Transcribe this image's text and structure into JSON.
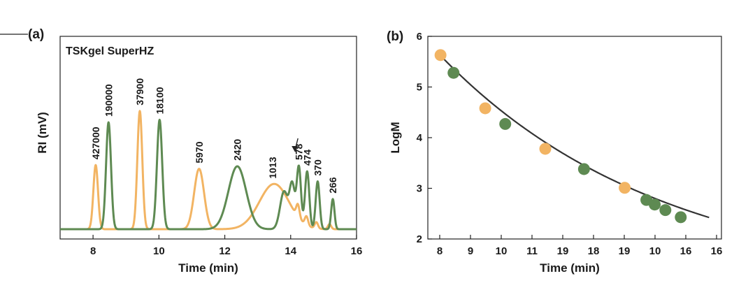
{
  "chart_data": [
    {
      "type": "line",
      "panel_label": "(a)",
      "title": "TSKgel SuperHZ",
      "xlabel": "Time (min)",
      "ylabel": "RI (mV)",
      "xlim": [
        7,
        16
      ],
      "ylim": [
        0,
        1
      ],
      "x_ticks": [
        8,
        10,
        12,
        14,
        16
      ],
      "x_tick_labels": [
        "8",
        "10",
        "12",
        "14",
        "16"
      ],
      "y_ticks_shown": false,
      "grid": false,
      "legend": false,
      "colors": {
        "orange": "#F2B463",
        "green": "#5E8A52"
      },
      "series": [
        {
          "color": "#F2B463",
          "peaks": [
            {
              "time": 8.08,
              "height": 0.51,
              "sigma": 0.07
            },
            {
              "time": 9.42,
              "height": 0.94,
              "sigma": 0.075
            },
            {
              "time": 11.22,
              "height": 0.48,
              "sigma": 0.15
            },
            {
              "time": 13.5,
              "height": 0.36,
              "sigma": 0.45
            },
            {
              "time": 14.22,
              "height": 0.1,
              "sigma": 0.05
            },
            {
              "time": 14.48,
              "height": 0.07,
              "sigma": 0.05
            },
            {
              "time": 14.78,
              "height": 0.05,
              "sigma": 0.05
            },
            {
              "time": 15.18,
              "height": 0.04,
              "sigma": 0.05
            }
          ]
        },
        {
          "color": "#5E8A52",
          "peaks": [
            {
              "time": 8.47,
              "height": 0.85,
              "sigma": 0.075
            },
            {
              "time": 10.02,
              "height": 0.87,
              "sigma": 0.08
            },
            {
              "time": 12.38,
              "height": 0.5,
              "sigma": 0.27
            },
            {
              "time": 13.8,
              "height": 0.3,
              "sigma": 0.12
            },
            {
              "time": 14.05,
              "height": 0.34,
              "sigma": 0.08
            },
            {
              "time": 14.25,
              "height": 0.49,
              "sigma": 0.065
            },
            {
              "time": 14.5,
              "height": 0.46,
              "sigma": 0.065
            },
            {
              "time": 14.82,
              "height": 0.38,
              "sigma": 0.06
            },
            {
              "time": 15.28,
              "height": 0.24,
              "sigma": 0.05
            }
          ]
        }
      ],
      "annotations": [
        {
          "text": "427000",
          "time": 8.08
        },
        {
          "text": "190000",
          "time": 8.47
        },
        {
          "text": "37900",
          "time": 9.42
        },
        {
          "text": "18100",
          "time": 10.02
        },
        {
          "text": "5970",
          "time": 11.22
        },
        {
          "text": "2420",
          "time": 12.38
        },
        {
          "text": "1013",
          "time": 13.45
        },
        {
          "text": "578",
          "time": 14.25
        },
        {
          "text": "474",
          "time": 14.5
        },
        {
          "text": "370",
          "time": 14.82
        },
        {
          "text": "266",
          "time": 15.28
        }
      ]
    },
    {
      "type": "scatter",
      "panel_label": "(b)",
      "xlabel": "Time (min)",
      "ylabel": "LogM",
      "xlim": [
        7.7,
        16.5
      ],
      "ylim": [
        2,
        6
      ],
      "x_tick_labels": [
        "8",
        "9",
        "10",
        "11",
        "19",
        "18",
        "19",
        "10",
        "16",
        "16"
      ],
      "y_ticks": [
        2,
        3,
        4,
        5,
        6
      ],
      "y_tick_labels": [
        "2",
        "3",
        "4",
        "5",
        "6"
      ],
      "grid": false,
      "legend": false,
      "fit_curve": {
        "color": "#333333",
        "x": [
          8.08,
          16.15
        ],
        "y": [
          5.62,
          2.42
        ]
      },
      "series": [
        {
          "color": "#F2B463",
          "points": [
            [
              8.08,
              5.63
            ],
            [
              9.42,
              4.58
            ],
            [
              11.22,
              3.78
            ],
            [
              13.6,
              3.01
            ]
          ]
        },
        {
          "color": "#5E8A52",
          "points": [
            [
              8.47,
              5.28
            ],
            [
              10.02,
              4.27
            ],
            [
              12.38,
              3.38
            ],
            [
              14.25,
              2.77
            ],
            [
              14.5,
              2.68
            ],
            [
              14.82,
              2.57
            ],
            [
              15.28,
              2.43
            ]
          ]
        }
      ]
    }
  ]
}
